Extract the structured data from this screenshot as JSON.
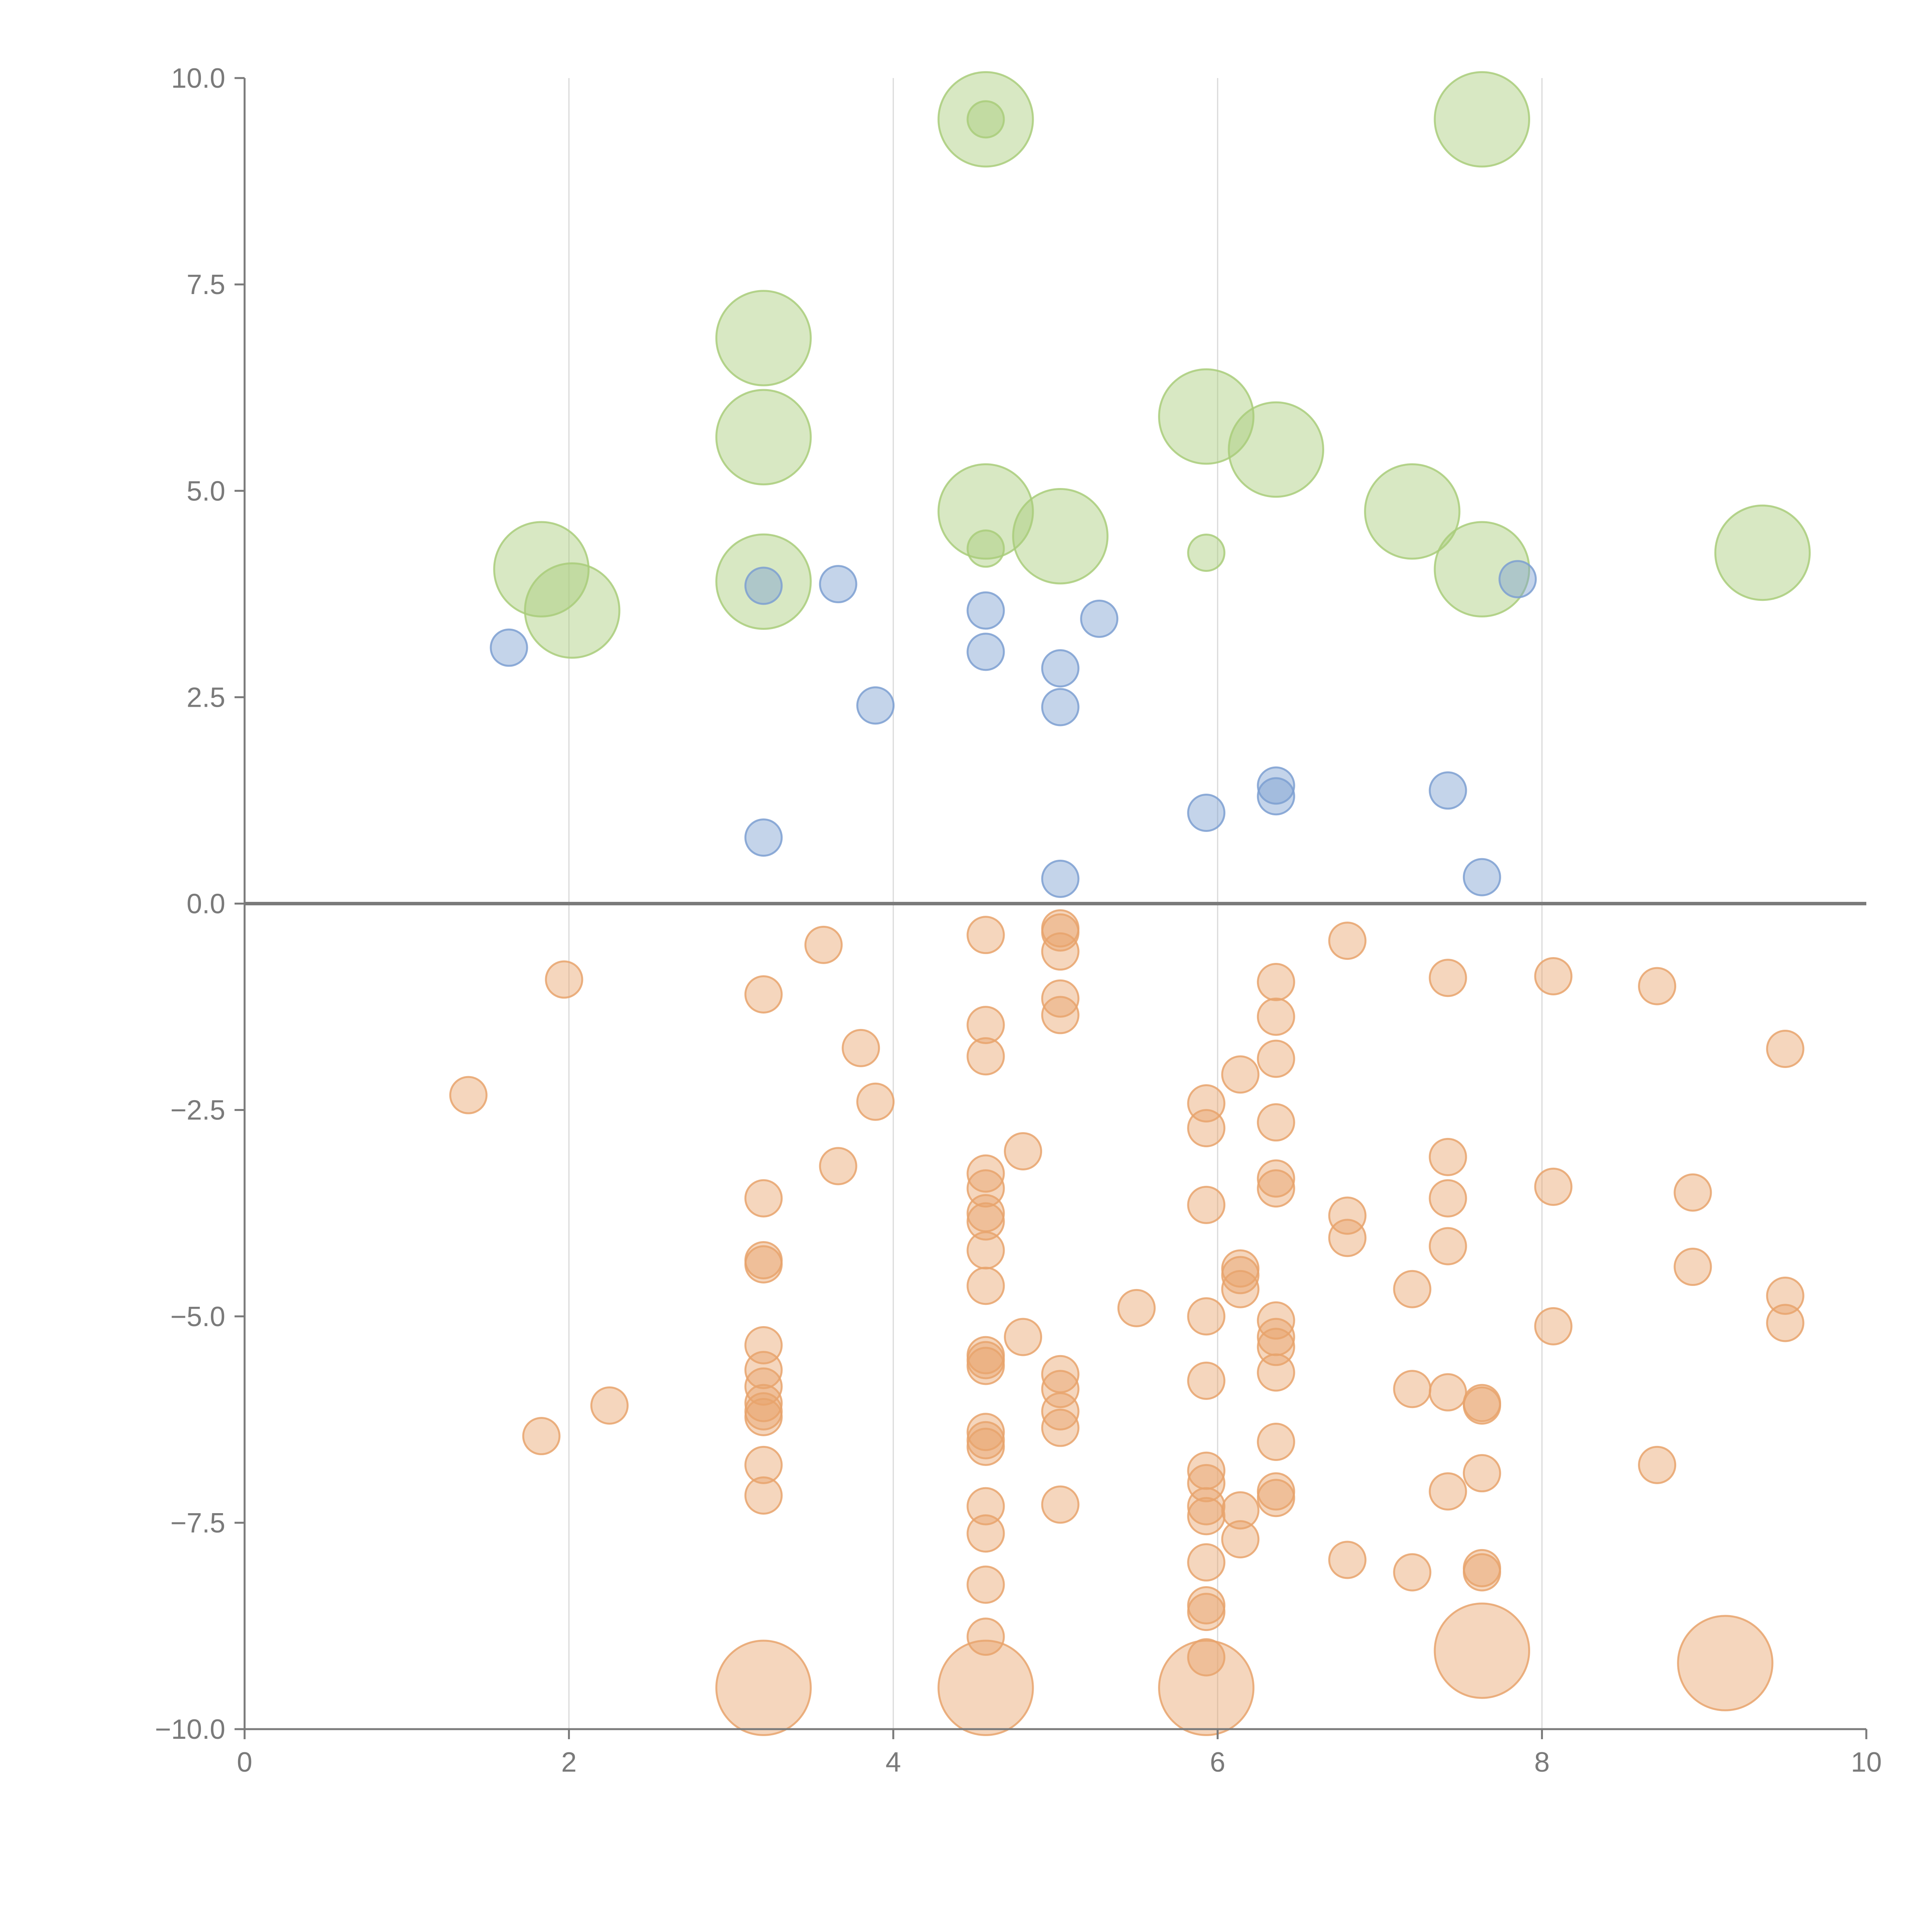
{
  "chart_data": {
    "type": "scatter",
    "title": "",
    "xlabel": "",
    "ylabel": "",
    "xlim": [
      0,
      10
    ],
    "ylim": [
      -10,
      10
    ],
    "x_ticks": [
      0,
      2,
      4,
      6,
      8,
      10
    ],
    "x_tick_labels": [
      "0",
      "2",
      "4",
      "6",
      "8",
      "10"
    ],
    "y_ticks": [
      -10,
      -7.5,
      -5,
      -2.5,
      0,
      2.5,
      5,
      7.5,
      10
    ],
    "y_tick_labels": [
      "−10.0",
      "−7.5",
      "−5.0",
      "−2.5",
      "0.0",
      "2.5",
      "5.0",
      "7.5",
      "10.0"
    ],
    "vertical_grid": true,
    "zero_line": true,
    "colors": {
      "green": "#a9cc7a",
      "blue": "#7d9fd1",
      "orange": "#e8a36c",
      "axis": "#7a7a7a",
      "grid": "#d9d9d9"
    },
    "series": [
      {
        "name": "green",
        "color": "#a9cc7a",
        "points": [
          {
            "x": 4.57,
            "y": 9.5,
            "size": 2.6
          },
          {
            "x": 4.57,
            "y": 9.5,
            "size": 1
          },
          {
            "x": 7.63,
            "y": 9.5,
            "size": 2.6
          },
          {
            "x": 3.2,
            "y": 6.85,
            "size": 2.6
          },
          {
            "x": 3.2,
            "y": 5.65,
            "size": 2.6
          },
          {
            "x": 5.93,
            "y": 5.9,
            "size": 2.6
          },
          {
            "x": 6.36,
            "y": 5.5,
            "size": 2.6
          },
          {
            "x": 4.57,
            "y": 4.75,
            "size": 2.6
          },
          {
            "x": 7.2,
            "y": 4.75,
            "size": 2.6
          },
          {
            "x": 5.03,
            "y": 4.45,
            "size": 2.6
          },
          {
            "x": 4.57,
            "y": 4.3,
            "size": 1
          },
          {
            "x": 5.93,
            "y": 4.25,
            "size": 1
          },
          {
            "x": 9.36,
            "y": 4.25,
            "size": 2.6
          },
          {
            "x": 1.83,
            "y": 4.05,
            "size": 2.6
          },
          {
            "x": 7.63,
            "y": 4.05,
            "size": 2.6
          },
          {
            "x": 3.2,
            "y": 3.9,
            "size": 2.6
          },
          {
            "x": 2.02,
            "y": 3.55,
            "size": 2.6
          }
        ]
      },
      {
        "name": "blue",
        "color": "#7d9fd1",
        "points": [
          {
            "x": 3.2,
            "y": 3.85
          },
          {
            "x": 3.66,
            "y": 3.87
          },
          {
            "x": 7.85,
            "y": 3.93
          },
          {
            "x": 4.57,
            "y": 3.55
          },
          {
            "x": 5.27,
            "y": 3.45
          },
          {
            "x": 1.63,
            "y": 3.1
          },
          {
            "x": 4.57,
            "y": 3.05
          },
          {
            "x": 5.03,
            "y": 2.85
          },
          {
            "x": 3.89,
            "y": 2.4
          },
          {
            "x": 5.03,
            "y": 2.38
          },
          {
            "x": 6.36,
            "y": 1.43
          },
          {
            "x": 7.42,
            "y": 1.37
          },
          {
            "x": 6.36,
            "y": 1.3
          },
          {
            "x": 5.93,
            "y": 1.1
          },
          {
            "x": 3.2,
            "y": 0.8
          },
          {
            "x": 5.03,
            "y": 0.3
          },
          {
            "x": 7.63,
            "y": 0.32
          }
        ]
      },
      {
        "name": "orange",
        "color": "#e8a36c",
        "points": [
          {
            "x": 5.03,
            "y": -0.3
          },
          {
            "x": 5.03,
            "y": -0.35
          },
          {
            "x": 4.57,
            "y": -0.38
          },
          {
            "x": 6.8,
            "y": -0.45
          },
          {
            "x": 3.57,
            "y": -0.5
          },
          {
            "x": 5.03,
            "y": -0.58
          },
          {
            "x": 1.97,
            "y": -0.92
          },
          {
            "x": 6.36,
            "y": -0.95
          },
          {
            "x": 7.42,
            "y": -0.9
          },
          {
            "x": 8.07,
            "y": -0.88
          },
          {
            "x": 8.71,
            "y": -1.0
          },
          {
            "x": 3.2,
            "y": -1.1
          },
          {
            "x": 5.03,
            "y": -1.15
          },
          {
            "x": 5.03,
            "y": -1.35
          },
          {
            "x": 6.36,
            "y": -1.37
          },
          {
            "x": 4.57,
            "y": -1.47
          },
          {
            "x": 3.8,
            "y": -1.75
          },
          {
            "x": 9.5,
            "y": -1.76
          },
          {
            "x": 4.57,
            "y": -1.85
          },
          {
            "x": 6.36,
            "y": -1.88
          },
          {
            "x": 6.14,
            "y": -2.07
          },
          {
            "x": 1.38,
            "y": -2.32
          },
          {
            "x": 3.89,
            "y": -2.4
          },
          {
            "x": 5.93,
            "y": -2.42
          },
          {
            "x": 6.36,
            "y": -2.65
          },
          {
            "x": 5.93,
            "y": -2.72
          },
          {
            "x": 4.8,
            "y": -3.0
          },
          {
            "x": 7.42,
            "y": -3.07
          },
          {
            "x": 3.66,
            "y": -3.18
          },
          {
            "x": 4.57,
            "y": -3.27
          },
          {
            "x": 6.36,
            "y": -3.33
          },
          {
            "x": 4.57,
            "y": -3.45
          },
          {
            "x": 6.36,
            "y": -3.45
          },
          {
            "x": 8.07,
            "y": -3.43
          },
          {
            "x": 8.93,
            "y": -3.5
          },
          {
            "x": 3.2,
            "y": -3.57
          },
          {
            "x": 7.42,
            "y": -3.57
          },
          {
            "x": 5.93,
            "y": -3.65
          },
          {
            "x": 4.57,
            "y": -3.75
          },
          {
            "x": 6.8,
            "y": -3.78
          },
          {
            "x": 4.57,
            "y": -3.85
          },
          {
            "x": 6.8,
            "y": -4.05
          },
          {
            "x": 7.42,
            "y": -4.15
          },
          {
            "x": 4.57,
            "y": -4.2
          },
          {
            "x": 3.2,
            "y": -4.32
          },
          {
            "x": 3.2,
            "y": -4.37
          },
          {
            "x": 6.14,
            "y": -4.42
          },
          {
            "x": 8.93,
            "y": -4.4
          },
          {
            "x": 6.14,
            "y": -4.5
          },
          {
            "x": 4.57,
            "y": -4.63
          },
          {
            "x": 7.2,
            "y": -4.67
          },
          {
            "x": 6.14,
            "y": -4.67
          },
          {
            "x": 9.5,
            "y": -4.75
          },
          {
            "x": 5.5,
            "y": -4.9
          },
          {
            "x": 5.93,
            "y": -5.0
          },
          {
            "x": 6.36,
            "y": -5.05
          },
          {
            "x": 9.5,
            "y": -5.08
          },
          {
            "x": 8.07,
            "y": -5.12
          },
          {
            "x": 4.8,
            "y": -5.25
          },
          {
            "x": 6.36,
            "y": -5.25
          },
          {
            "x": 6.36,
            "y": -5.37
          },
          {
            "x": 3.2,
            "y": -5.35
          },
          {
            "x": 4.57,
            "y": -5.47
          },
          {
            "x": 4.57,
            "y": -5.53
          },
          {
            "x": 4.57,
            "y": -5.6
          },
          {
            "x": 3.2,
            "y": -5.65
          },
          {
            "x": 6.36,
            "y": -5.68
          },
          {
            "x": 5.03,
            "y": -5.7
          },
          {
            "x": 5.93,
            "y": -5.78
          },
          {
            "x": 3.2,
            "y": -5.85
          },
          {
            "x": 5.03,
            "y": -5.88
          },
          {
            "x": 7.2,
            "y": -5.88
          },
          {
            "x": 7.42,
            "y": -5.92
          },
          {
            "x": 3.2,
            "y": -6.05
          },
          {
            "x": 7.63,
            "y": -6.05
          },
          {
            "x": 7.63,
            "y": -6.08
          },
          {
            "x": 2.25,
            "y": -6.08
          },
          {
            "x": 3.2,
            "y": -6.15
          },
          {
            "x": 5.03,
            "y": -6.15
          },
          {
            "x": 3.2,
            "y": -6.22
          },
          {
            "x": 5.03,
            "y": -6.35
          },
          {
            "x": 4.57,
            "y": -6.4
          },
          {
            "x": 1.83,
            "y": -6.45
          },
          {
            "x": 4.57,
            "y": -6.5
          },
          {
            "x": 6.36,
            "y": -6.52
          },
          {
            "x": 4.57,
            "y": -6.58
          },
          {
            "x": 8.71,
            "y": -6.8
          },
          {
            "x": 3.2,
            "y": -6.8
          },
          {
            "x": 5.93,
            "y": -6.87
          },
          {
            "x": 7.63,
            "y": -6.9
          },
          {
            "x": 5.93,
            "y": -7.02
          },
          {
            "x": 7.42,
            "y": -7.12
          },
          {
            "x": 6.36,
            "y": -7.12
          },
          {
            "x": 3.2,
            "y": -7.17
          },
          {
            "x": 6.36,
            "y": -7.2
          },
          {
            "x": 4.57,
            "y": -7.3
          },
          {
            "x": 5.03,
            "y": -7.28
          },
          {
            "x": 5.93,
            "y": -7.3
          },
          {
            "x": 6.14,
            "y": -7.35
          },
          {
            "x": 5.93,
            "y": -7.42
          },
          {
            "x": 4.57,
            "y": -7.63
          },
          {
            "x": 6.14,
            "y": -7.7
          },
          {
            "x": 6.8,
            "y": -7.95
          },
          {
            "x": 5.93,
            "y": -7.98
          },
          {
            "x": 7.63,
            "y": -8.05
          },
          {
            "x": 7.2,
            "y": -8.1
          },
          {
            "x": 7.63,
            "y": -8.1
          },
          {
            "x": 4.57,
            "y": -8.25
          },
          {
            "x": 5.93,
            "y": -8.5
          },
          {
            "x": 5.93,
            "y": -8.58
          },
          {
            "x": 4.57,
            "y": -8.88
          },
          {
            "x": 5.93,
            "y": -9.13
          },
          {
            "x": 7.63,
            "y": -9.05,
            "size": 2.6
          },
          {
            "x": 9.13,
            "y": -9.2,
            "size": 2.6
          },
          {
            "x": 3.2,
            "y": -9.5,
            "size": 2.6
          },
          {
            "x": 4.57,
            "y": -9.5,
            "size": 2.6
          },
          {
            "x": 5.93,
            "y": -9.5,
            "size": 2.6
          }
        ]
      }
    ]
  }
}
